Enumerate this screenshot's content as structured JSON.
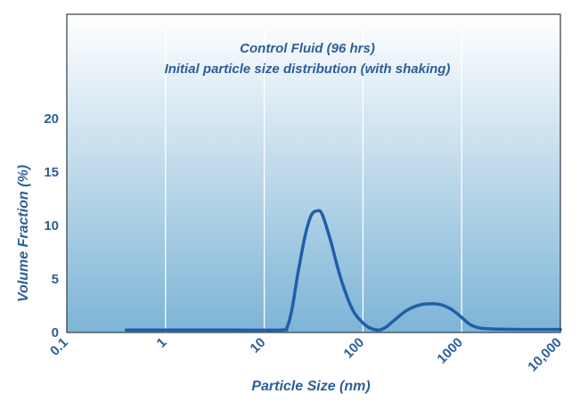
{
  "chart_data": {
    "type": "line",
    "title": "Control Fluid (96 hrs)",
    "subtitle": "Initial particle size distribution (with shaking)",
    "xlabel": "Particle Size (nm)",
    "ylabel": "Volume Fraction (%)",
    "x_scale": "log",
    "xlim": [
      0.1,
      10000
    ],
    "ylim": [
      0,
      25
    ],
    "x_ticks": [
      {
        "value": 0.1,
        "label": "0.1"
      },
      {
        "value": 1,
        "label": "1"
      },
      {
        "value": 10,
        "label": "10"
      },
      {
        "value": 100,
        "label": "100"
      },
      {
        "value": 1000,
        "label": "1000"
      },
      {
        "value": 10000,
        "label": "10,000"
      }
    ],
    "y_ticks": [
      {
        "value": 0,
        "label": "0"
      },
      {
        "value": 5,
        "label": "5"
      },
      {
        "value": 10,
        "label": "10"
      },
      {
        "value": 15,
        "label": "15"
      },
      {
        "value": 20,
        "label": "20"
      }
    ],
    "grid": "vertical",
    "colors": {
      "line": "#1f5fa8",
      "text": "#2c5f98",
      "grid": "#ffffff",
      "bg_top": "#ffffff",
      "bg_bottom": "#7db4d6",
      "frame": "#2f3b45"
    },
    "series": [
      {
        "x": [
          0.4,
          1,
          5,
          15,
          17,
          19,
          22,
          26,
          30,
          35,
          38,
          42,
          48,
          55,
          65,
          80,
          100,
          120,
          145,
          170,
          210,
          280,
          380,
          500,
          620,
          780,
          950,
          1200,
          1500,
          2000,
          4000,
          10000
        ],
        "values": [
          0.15,
          0.15,
          0.15,
          0.15,
          0.4,
          2.0,
          5.5,
          9.0,
          10.9,
          11.3,
          11.1,
          10.0,
          8.2,
          6.1,
          3.9,
          1.9,
          0.8,
          0.3,
          0.15,
          0.4,
          1.1,
          2.0,
          2.5,
          2.6,
          2.5,
          2.1,
          1.5,
          0.7,
          0.35,
          0.25,
          0.2,
          0.2
        ]
      }
    ]
  }
}
